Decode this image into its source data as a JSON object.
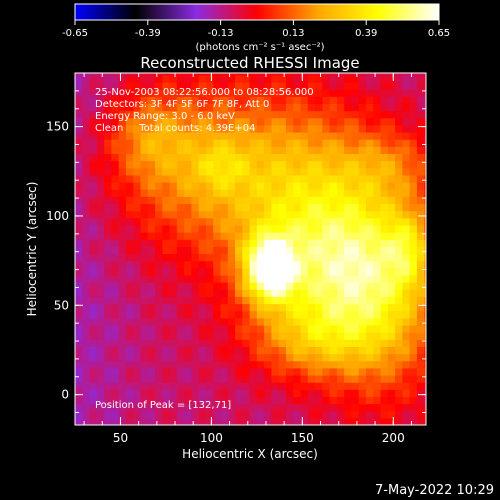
{
  "chart_data": {
    "type": "heatmap",
    "title": "Reconstructed RHESSI Image",
    "xlabel": "Heliocentric X (arcsec)",
    "ylabel": "Heliocentric Y (arcsec)",
    "xlim": [
      25,
      218
    ],
    "ylim": [
      -17,
      180
    ],
    "xticks": [
      50,
      100,
      150,
      200
    ],
    "yticks": [
      0,
      50,
      100,
      150
    ],
    "colorbar": {
      "min": -0.65,
      "max": 0.65,
      "ticks": [
        "-0.65",
        "-0.39",
        "-0.13",
        "0.13",
        "0.39",
        "0.65"
      ],
      "unit_label": "(photons cm⁻² s⁻¹ asec⁻²)",
      "colors": [
        "#0000ff",
        "#000000",
        "#8a2be2",
        "#ff0000",
        "#ffa500",
        "#ffff00",
        "#ffffff"
      ]
    },
    "annotations": [
      "25-Nov-2003 08:22:56.000 to 08:28:56.000",
      "Detectors: 3F 4F 5F 6F 7F 8F, Att 0",
      "Energy Range: 3.0 - 6.0 keV",
      "Clean     Total counts: 4.39E+04"
    ],
    "peak_label": "Position of Peak = [132,71]",
    "peak": {
      "x": 132,
      "y": 71,
      "value": 0.65
    },
    "emission_blobs": [
      {
        "x": 132,
        "y": 71,
        "sx": 9,
        "sy": 12,
        "value": 0.65
      },
      {
        "x": 100,
        "y": 128,
        "sx": 38,
        "sy": 32,
        "value": 0.32
      },
      {
        "x": 105,
        "y": 128,
        "sx": 10,
        "sy": 10,
        "value": 0.12
      },
      {
        "x": 65,
        "y": 145,
        "sx": 16,
        "sy": 16,
        "value": 0.16
      },
      {
        "x": 160,
        "y": 100,
        "sx": 30,
        "sy": 40,
        "value": 0.33
      },
      {
        "x": 165,
        "y": 62,
        "sx": 32,
        "sy": 30,
        "value": 0.3
      },
      {
        "x": 195,
        "y": 58,
        "sx": 22,
        "sy": 42,
        "value": 0.3
      },
      {
        "x": 208,
        "y": 82,
        "sx": 8,
        "sy": 14,
        "value": 0.2
      },
      {
        "x": 200,
        "y": 130,
        "sx": 18,
        "sy": 12,
        "value": 0.12
      },
      {
        "x": 155,
        "y": 30,
        "sx": 22,
        "sy": 14,
        "value": 0.17
      }
    ],
    "background_value": -0.1
  },
  "footer": {
    "timestamp": "7-May-2022 10:29"
  }
}
